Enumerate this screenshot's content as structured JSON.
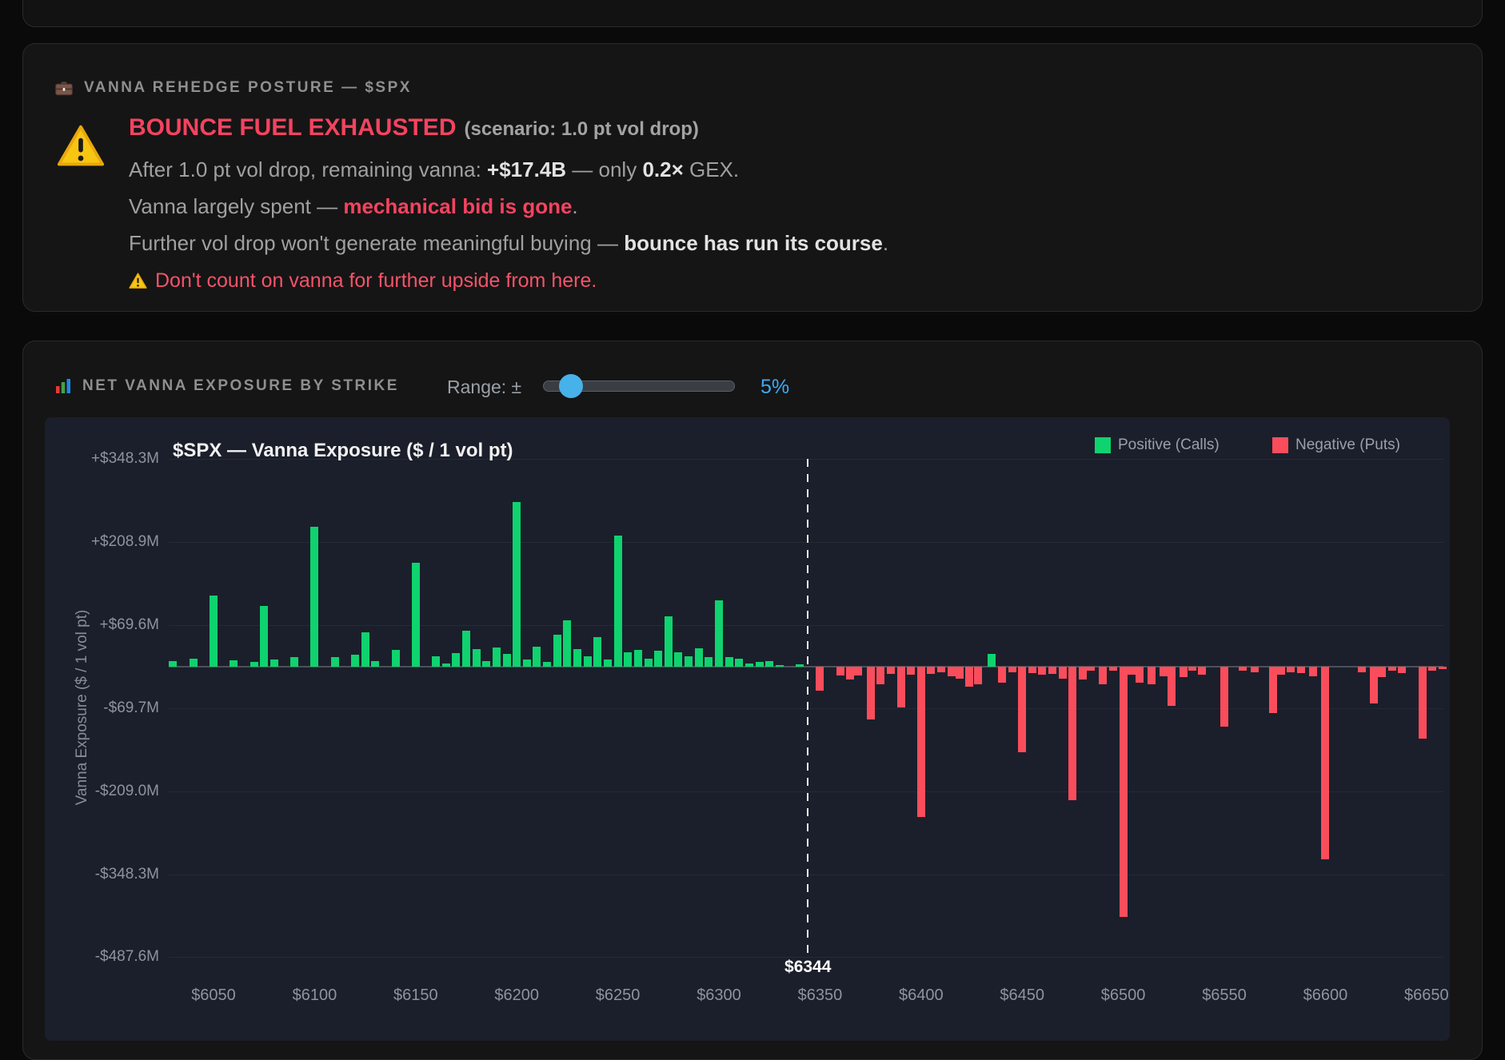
{
  "posture_card": {
    "header": "VANNA REHEDGE POSTURE — $SPX",
    "title": "BOUNCE FUEL EXHAUSTED",
    "scenario": "(scenario: 1.0 pt vol drop)",
    "line1": {
      "pre": "After 1.0 pt vol drop, remaining vanna: ",
      "b1": "+$17.4B",
      "mid": " — only ",
      "b2": "0.2×",
      "post": " GEX."
    },
    "line2": {
      "pre": "Vanna largely spent — ",
      "em": "mechanical bid is gone",
      "post": "."
    },
    "line3": {
      "pre": "Further vol drop won't generate meaningful buying — ",
      "b": "bounce has run its course",
      "post": "."
    },
    "warning": "Don't count on vanna for further upside from here."
  },
  "chart_card": {
    "header": "NET VANNA EXPOSURE BY STRIKE",
    "range_label": "Range: ±",
    "range_value": "5%"
  },
  "chart_data": {
    "type": "bar",
    "title": "$SPX — Vanna Exposure ($ / 1 vol pt)",
    "ylabel": "Vanna Exposure ($ / 1 vol pt)",
    "xlabel": "",
    "legend": [
      {
        "label": "Positive (Calls)",
        "color": "#0fd36e"
      },
      {
        "label": "Negative (Puts)",
        "color": "#fa4d5c"
      }
    ],
    "legend_position": "top-right",
    "grid": true,
    "x_range": [
      6028,
      6662
    ],
    "y_range_m": [
      -487.6,
      348.3
    ],
    "y_ticks": [
      {
        "label": "+$348.3M",
        "value": 348.3
      },
      {
        "label": "+$208.9M",
        "value": 208.9
      },
      {
        "label": "+$69.6M",
        "value": 69.6
      },
      {
        "label": "-$69.7M",
        "value": -69.7
      },
      {
        "label": "-$209.0M",
        "value": -209.0
      },
      {
        "label": "-$348.3M",
        "value": -348.3
      },
      {
        "label": "-$487.6M",
        "value": -487.6
      }
    ],
    "x_ticks": [
      {
        "label": "$6050",
        "strike": 6050
      },
      {
        "label": "$6100",
        "strike": 6100
      },
      {
        "label": "$6150",
        "strike": 6150
      },
      {
        "label": "$6200",
        "strike": 6200
      },
      {
        "label": "$6250",
        "strike": 6250
      },
      {
        "label": "$6300",
        "strike": 6300
      },
      {
        "label": "$6350",
        "strike": 6350
      },
      {
        "label": "$6400",
        "strike": 6400
      },
      {
        "label": "$6450",
        "strike": 6450
      },
      {
        "label": "$6500",
        "strike": 6500
      },
      {
        "label": "$6550",
        "strike": 6550
      },
      {
        "label": "$6600",
        "strike": 6600
      },
      {
        "label": "$6650",
        "strike": 6650
      }
    ],
    "spot": {
      "label": "$6344",
      "strike": 6344
    },
    "bars": [
      [
        6030,
        10
      ],
      [
        6040,
        14
      ],
      [
        6050,
        119
      ],
      [
        6060,
        11
      ],
      [
        6070,
        8
      ],
      [
        6075,
        102
      ],
      [
        6080,
        12
      ],
      [
        6090,
        16
      ],
      [
        6100,
        235
      ],
      [
        6110,
        16
      ],
      [
        6120,
        20
      ],
      [
        6125,
        58
      ],
      [
        6130,
        10
      ],
      [
        6140,
        28
      ],
      [
        6150,
        174
      ],
      [
        6160,
        18
      ],
      [
        6165,
        5
      ],
      [
        6170,
        23
      ],
      [
        6175,
        61
      ],
      [
        6180,
        29
      ],
      [
        6185,
        9
      ],
      [
        6190,
        32
      ],
      [
        6195,
        22
      ],
      [
        6200,
        277
      ],
      [
        6205,
        12
      ],
      [
        6210,
        33
      ],
      [
        6215,
        8
      ],
      [
        6220,
        54
      ],
      [
        6225,
        78
      ],
      [
        6230,
        29
      ],
      [
        6235,
        17
      ],
      [
        6240,
        49
      ],
      [
        6245,
        12
      ],
      [
        6250,
        220
      ],
      [
        6255,
        24
      ],
      [
        6260,
        28
      ],
      [
        6265,
        13
      ],
      [
        6270,
        27
      ],
      [
        6275,
        85
      ],
      [
        6280,
        24
      ],
      [
        6285,
        18
      ],
      [
        6290,
        31
      ],
      [
        6295,
        16
      ],
      [
        6300,
        111
      ],
      [
        6305,
        16
      ],
      [
        6310,
        14
      ],
      [
        6315,
        5
      ],
      [
        6320,
        8
      ],
      [
        6325,
        9
      ],
      [
        6330,
        3
      ],
      [
        6340,
        4
      ],
      [
        6350,
        -40
      ],
      [
        6360,
        -15
      ],
      [
        6365,
        -22
      ],
      [
        6369,
        -15
      ],
      [
        6375,
        -89
      ],
      [
        6380,
        -29
      ],
      [
        6385,
        -12
      ],
      [
        6390,
        -69
      ],
      [
        6395,
        -14
      ],
      [
        6400,
        -252
      ],
      [
        6405,
        -12
      ],
      [
        6410,
        -10
      ],
      [
        6415,
        -16
      ],
      [
        6419,
        -20
      ],
      [
        6424,
        -34
      ],
      [
        6428,
        -29
      ],
      [
        6435,
        22
      ],
      [
        6440,
        -27
      ],
      [
        6445,
        -9
      ],
      [
        6450,
        -144
      ],
      [
        6455,
        -11
      ],
      [
        6460,
        -13
      ],
      [
        6465,
        -12
      ],
      [
        6470,
        -20
      ],
      [
        6475,
        -224
      ],
      [
        6480,
        -22
      ],
      [
        6484,
        -7
      ],
      [
        6490,
        -29
      ],
      [
        6495,
        -7
      ],
      [
        6500,
        -420
      ],
      [
        6504,
        -13
      ],
      [
        6508,
        -27
      ],
      [
        6514,
        -29
      ],
      [
        6520,
        -16
      ],
      [
        6524,
        -66
      ],
      [
        6530,
        -18
      ],
      [
        6534,
        -7
      ],
      [
        6539,
        -13
      ],
      [
        6550,
        -100
      ],
      [
        6559,
        -7
      ],
      [
        6565,
        -9
      ],
      [
        6574,
        -78
      ],
      [
        6578,
        -13
      ],
      [
        6583,
        -9
      ],
      [
        6588,
        -11
      ],
      [
        6594,
        -16
      ],
      [
        6600,
        -323
      ],
      [
        6618,
        -9
      ],
      [
        6624,
        -62
      ],
      [
        6628,
        -18
      ],
      [
        6633,
        -7
      ],
      [
        6638,
        -11
      ],
      [
        6648,
        -121
      ],
      [
        6653,
        -7
      ],
      [
        6658,
        -4
      ]
    ]
  },
  "colors": {
    "positive": "#0fd36e",
    "negative": "#fa4d5c",
    "accent_red": "#f4435f",
    "accent_blue": "#3fa9f4",
    "panel_bg": "#1b1f2b"
  }
}
